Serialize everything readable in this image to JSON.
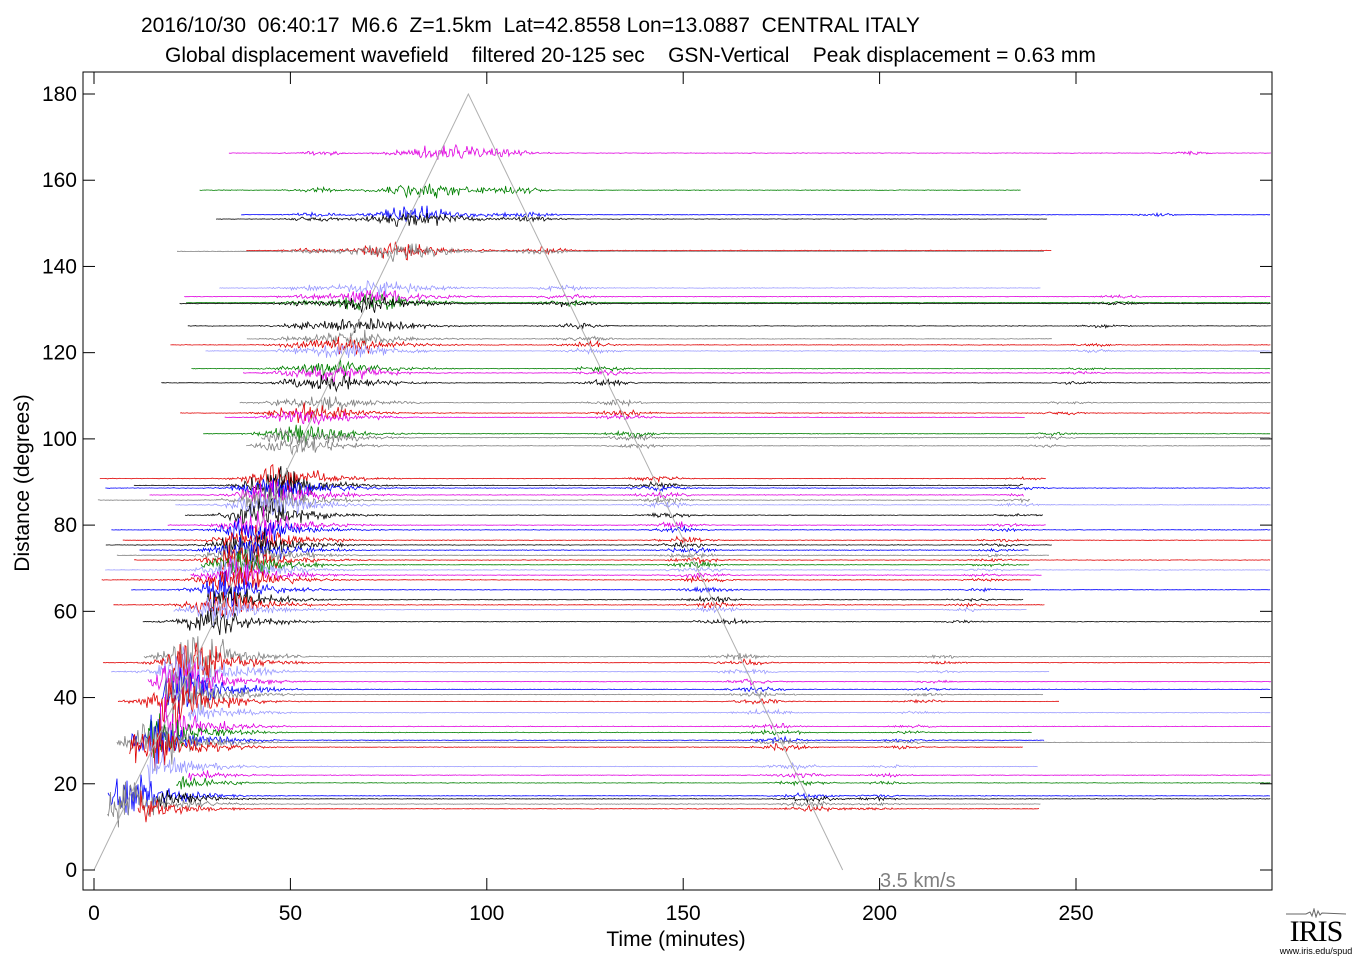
{
  "header": {
    "title_line1": "2016/10/30  06:40:17  M6.6  Z=1.5km  Lat=42.8558 Lon=13.0887  CENTRAL ITALY",
    "title_line2": "Global displacement wavefield    filtered 20-125 sec    GSN-Vertical    Peak displacement = 0.63 mm"
  },
  "logo": {
    "text": "IRIS",
    "url": "www.iris.edu/spud"
  },
  "chart_data": {
    "type": "line",
    "subtype": "seismic record section",
    "title": "2016/10/30  06:40:17  M6.6  Z=1.5km  Lat=42.8558 Lon=13.0887  CENTRAL ITALY",
    "subtitle": "Global displacement wavefield    filtered 20-125 sec    GSN-Vertical    Peak displacement = 0.63 mm",
    "xlabel": "Time (minutes)",
    "ylabel": "Distance (degrees)",
    "xlim": [
      -3,
      300
    ],
    "ylim": [
      -4.6,
      185
    ],
    "xticks": [
      0,
      50,
      100,
      150,
      200,
      250
    ],
    "yticks": [
      0,
      20,
      40,
      60,
      80,
      100,
      120,
      140,
      160,
      180
    ],
    "grid": false,
    "reference_line": {
      "label": "3.5 km/s",
      "points": [
        [
          0,
          0
        ],
        [
          95.3,
          180
        ],
        [
          190.6,
          0
        ]
      ],
      "color": "#b0b0b0"
    },
    "colors": {
      "magenta": "#e000e0",
      "green": "#008000",
      "blue": "#0000ff",
      "black": "#000000",
      "gray": "#808080",
      "red": "#e00000",
      "lightblue": "#9a9aff"
    },
    "traces": [
      {
        "distance": 166.3,
        "color": "magenta"
      },
      {
        "distance": 157.7,
        "color": "green"
      },
      {
        "distance": 152.0,
        "color": "blue"
      },
      {
        "distance": 151.0,
        "color": "black"
      },
      {
        "distance": 143.7,
        "color": "red"
      },
      {
        "distance": 143.5,
        "color": "gray"
      },
      {
        "distance": 135.0,
        "color": "lightblue"
      },
      {
        "distance": 133.0,
        "color": "magenta"
      },
      {
        "distance": 131.6,
        "color": "green"
      },
      {
        "distance": 131.4,
        "color": "black"
      },
      {
        "distance": 126.2,
        "color": "black"
      },
      {
        "distance": 123.2,
        "color": "gray"
      },
      {
        "distance": 121.8,
        "color": "red"
      },
      {
        "distance": 120.4,
        "color": "lightblue"
      },
      {
        "distance": 116.3,
        "color": "green"
      },
      {
        "distance": 115.3,
        "color": "magenta"
      },
      {
        "distance": 113.0,
        "color": "black"
      },
      {
        "distance": 108.4,
        "color": "gray"
      },
      {
        "distance": 106.0,
        "color": "red"
      },
      {
        "distance": 105.0,
        "color": "magenta"
      },
      {
        "distance": 101.2,
        "color": "green"
      },
      {
        "distance": 100.3,
        "color": "gray"
      },
      {
        "distance": 98.4,
        "color": "gray"
      },
      {
        "distance": 90.8,
        "color": "red"
      },
      {
        "distance": 89.2,
        "color": "black"
      },
      {
        "distance": 88.6,
        "color": "blue"
      },
      {
        "distance": 87.0,
        "color": "magenta"
      },
      {
        "distance": 85.8,
        "color": "gray"
      },
      {
        "distance": 84.7,
        "color": "lightblue"
      },
      {
        "distance": 82.3,
        "color": "black"
      },
      {
        "distance": 80.0,
        "color": "magenta"
      },
      {
        "distance": 78.9,
        "color": "blue"
      },
      {
        "distance": 76.5,
        "color": "red"
      },
      {
        "distance": 75.4,
        "color": "black"
      },
      {
        "distance": 74.2,
        "color": "blue"
      },
      {
        "distance": 73.0,
        "color": "gray"
      },
      {
        "distance": 71.9,
        "color": "red"
      },
      {
        "distance": 70.8,
        "color": "green"
      },
      {
        "distance": 69.6,
        "color": "lightblue"
      },
      {
        "distance": 68.4,
        "color": "magenta"
      },
      {
        "distance": 67.3,
        "color": "red"
      },
      {
        "distance": 65.0,
        "color": "blue"
      },
      {
        "distance": 62.7,
        "color": "black"
      },
      {
        "distance": 61.5,
        "color": "red"
      },
      {
        "distance": 60.4,
        "color": "lightblue"
      },
      {
        "distance": 57.6,
        "color": "black"
      },
      {
        "distance": 49.5,
        "color": "gray"
      },
      {
        "distance": 48.1,
        "color": "red"
      },
      {
        "distance": 46.0,
        "color": "lightblue"
      },
      {
        "distance": 43.7,
        "color": "magenta"
      },
      {
        "distance": 41.9,
        "color": "blue"
      },
      {
        "distance": 40.7,
        "color": "gray"
      },
      {
        "distance": 39.1,
        "color": "red"
      },
      {
        "distance": 36.5,
        "color": "lightblue"
      },
      {
        "distance": 33.3,
        "color": "magenta"
      },
      {
        "distance": 31.9,
        "color": "green"
      },
      {
        "distance": 30.1,
        "color": "blue"
      },
      {
        "distance": 29.6,
        "color": "gray"
      },
      {
        "distance": 28.5,
        "color": "red"
      },
      {
        "distance": 24.0,
        "color": "lightblue"
      },
      {
        "distance": 22.0,
        "color": "magenta"
      },
      {
        "distance": 20.2,
        "color": "green"
      },
      {
        "distance": 17.2,
        "color": "blue"
      },
      {
        "distance": 16.5,
        "color": "black"
      },
      {
        "distance": 15.3,
        "color": "gray"
      },
      {
        "distance": 14.2,
        "color": "red"
      }
    ]
  }
}
